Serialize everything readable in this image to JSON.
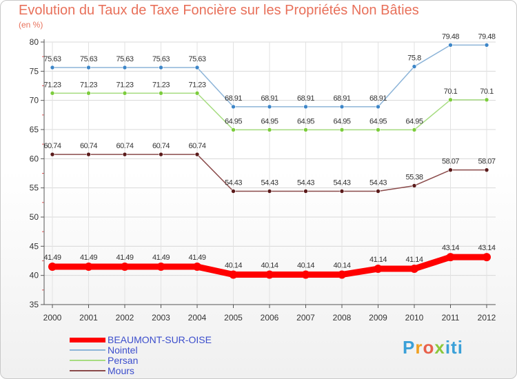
{
  "chart_data": {
    "type": "line",
    "title": "Evolution du Taux de Taxe Foncière sur les Propriétés Non Bâties",
    "ylabel": "(en %)",
    "xlabel": "",
    "ylim": [
      35,
      80
    ],
    "yticks": [
      35,
      40,
      45,
      50,
      55,
      60,
      65,
      70,
      75,
      80
    ],
    "grid": true,
    "legend_position": "bottom-left",
    "x": [
      "2000",
      "2001",
      "2002",
      "2003",
      "2004",
      "2005",
      "2006",
      "2007",
      "2008",
      "2009",
      "2010",
      "2011",
      "2012"
    ],
    "series": [
      {
        "name": "BEAUMONT-SUR-OISE",
        "color": "#ff0000",
        "marker": "#ff0000",
        "emphasis": true,
        "values": [
          41.49,
          41.49,
          41.49,
          41.49,
          41.49,
          40.14,
          40.14,
          40.14,
          40.14,
          41.14,
          41.14,
          43.14,
          43.14
        ],
        "labels": [
          "41.49",
          "41.49",
          "41.49",
          "41.49",
          "41.49",
          "40.14",
          "40.14",
          "40.14",
          "40.14",
          "41.14",
          "41.14",
          "43.14",
          "43.14"
        ]
      },
      {
        "name": "Nointel",
        "color": "#8cb4d8",
        "marker": "#3d86c8",
        "emphasis": false,
        "values": [
          75.63,
          75.63,
          75.63,
          75.63,
          75.63,
          68.91,
          68.91,
          68.91,
          68.91,
          68.91,
          75.8,
          79.48,
          79.48
        ],
        "labels": [
          "75.63",
          "75.63",
          "75.63",
          "75.63",
          "75.63",
          "68.91",
          "68.91",
          "68.91",
          "68.91",
          "68.91",
          "75.8",
          "79.48",
          "79.48"
        ]
      },
      {
        "name": "Persan",
        "color": "#a6dc80",
        "marker": "#7ccc3c",
        "emphasis": false,
        "values": [
          71.23,
          71.23,
          71.23,
          71.23,
          71.23,
          64.95,
          64.95,
          64.95,
          64.95,
          64.95,
          64.95,
          70.1,
          70.1
        ],
        "labels": [
          "71.23",
          "71.23",
          "71.23",
          "71.23",
          "71.23",
          "64.95",
          "64.95",
          "64.95",
          "64.95",
          "64.95",
          "64.95",
          "70.1",
          "70.1"
        ]
      },
      {
        "name": "Mours",
        "color": "#8a4a4a",
        "marker": "#5a1a1a",
        "emphasis": false,
        "values": [
          60.74,
          60.74,
          60.74,
          60.74,
          60.74,
          54.43,
          54.43,
          54.43,
          54.43,
          54.43,
          55.38,
          58.07,
          58.07
        ],
        "labels": [
          "60.74",
          "60.74",
          "60.74",
          "60.74",
          "60.74",
          "54.43",
          "54.43",
          "54.43",
          "54.43",
          "54.43",
          "55.38",
          "58.07",
          "58.07"
        ]
      }
    ]
  },
  "brand": {
    "letters": [
      "P",
      "r",
      "o",
      "x",
      "iti"
    ]
  }
}
